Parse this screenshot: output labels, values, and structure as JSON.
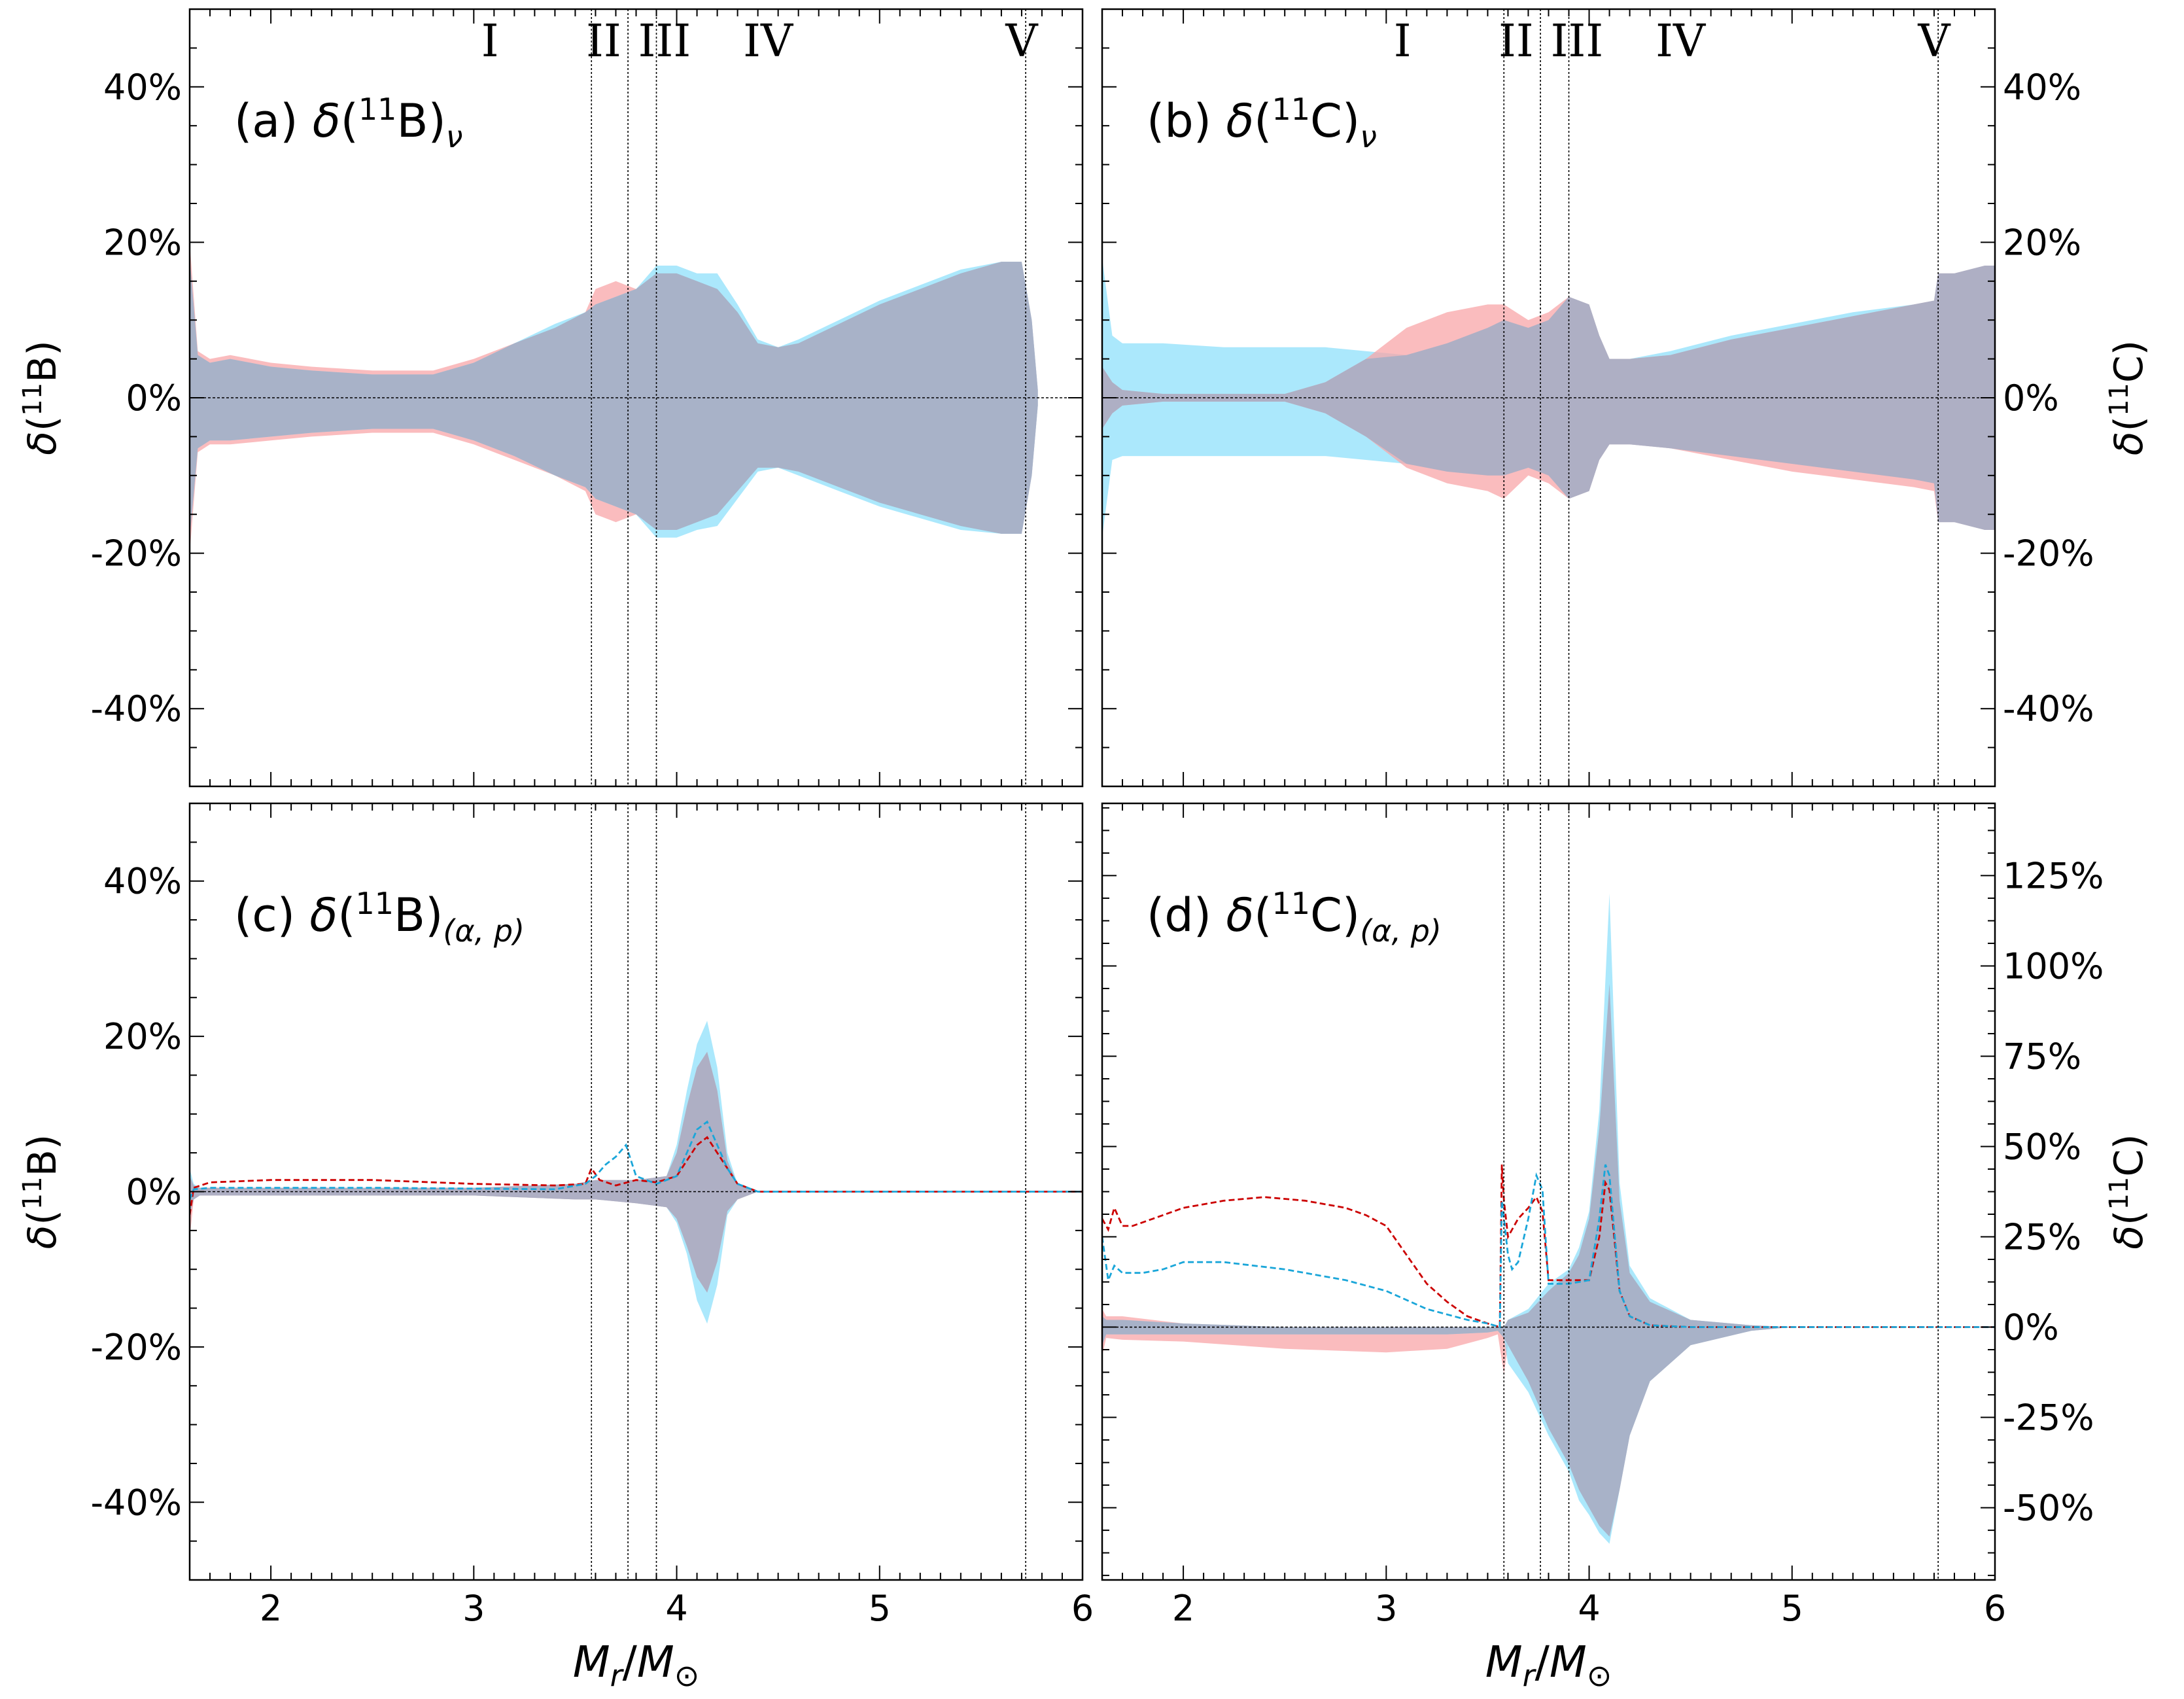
{
  "chart_data": [
    {
      "panel": "a",
      "type": "area",
      "label_prefix": "(a) ",
      "label_nuc": "11",
      "label_el": "B",
      "label_sub": "ν",
      "ylabel_el": "B",
      "ylabel_side": "left",
      "xlim": [
        1.6,
        6.0
      ],
      "ylim": [
        -50,
        50
      ],
      "yticks": [
        -40,
        -20,
        0,
        20,
        40
      ],
      "ytick_labels": [
        "-40%",
        "-20%",
        "0%",
        "20%",
        "40%"
      ],
      "series": [
        {
          "color": "#f8a6a8",
          "x": [
            1.6,
            1.64,
            1.7,
            1.8,
            2.0,
            2.2,
            2.5,
            2.8,
            3.0,
            3.2,
            3.4,
            3.55,
            3.6,
            3.7,
            3.8,
            3.9,
            4.0,
            4.1,
            4.2,
            4.3,
            4.4,
            4.5,
            4.6,
            4.8,
            5.0,
            5.2,
            5.4,
            5.6,
            5.7,
            5.75,
            5.78
          ],
          "upper": [
            20,
            6,
            5,
            5.5,
            4.5,
            4,
            3.5,
            3.5,
            5,
            7,
            9,
            11,
            14,
            15,
            14,
            16,
            16,
            15,
            14,
            11,
            7,
            6.5,
            7,
            9.5,
            12,
            14,
            16,
            17.5,
            17.5,
            10,
            1
          ],
          "lower": [
            -20,
            -7,
            -6,
            -6,
            -5.5,
            -5,
            -4.5,
            -4.5,
            -6,
            -8,
            -10,
            -12,
            -15,
            -16,
            -15,
            -17,
            -17,
            -16,
            -15,
            -12,
            -9,
            -9,
            -9.5,
            -11.5,
            -13.5,
            -15,
            -16.5,
            -17.5,
            -17.5,
            -10,
            -1
          ]
        },
        {
          "color": "#8fe0fb",
          "x": [
            1.6,
            1.64,
            1.7,
            1.8,
            2.0,
            2.2,
            2.5,
            2.8,
            3.0,
            3.2,
            3.4,
            3.55,
            3.6,
            3.7,
            3.8,
            3.9,
            4.0,
            4.1,
            4.2,
            4.3,
            4.4,
            4.5,
            4.6,
            4.8,
            5.0,
            5.2,
            5.4,
            5.6,
            5.7,
            5.75,
            5.78
          ],
          "upper": [
            18,
            5.5,
            4.5,
            5,
            4,
            3.5,
            3,
            3,
            4.5,
            7,
            9.5,
            11,
            12,
            13,
            14,
            17,
            17,
            16,
            16,
            12,
            7.5,
            6.5,
            7.5,
            10,
            12.5,
            14.5,
            16.5,
            17.5,
            17.5,
            10,
            1
          ],
          "lower": [
            -18,
            -6.5,
            -5.5,
            -5.5,
            -5,
            -4.5,
            -4,
            -4,
            -5.5,
            -7.5,
            -10,
            -11.5,
            -13,
            -14,
            -15,
            -18,
            -18,
            -17,
            -16.5,
            -13,
            -9.5,
            -9,
            -10,
            -12,
            -14,
            -15.5,
            -17,
            -17.5,
            -17.5,
            -10,
            -1
          ]
        }
      ],
      "dashed_lines": []
    },
    {
      "panel": "b",
      "type": "area",
      "label_prefix": "(b) ",
      "label_nuc": "11",
      "label_el": "C",
      "label_sub": "ν",
      "ylabel_el": "C",
      "ylabel_side": "right",
      "xlim": [
        1.6,
        6.0
      ],
      "ylim": [
        -50,
        50
      ],
      "yticks": [
        -40,
        -20,
        0,
        20,
        40
      ],
      "ytick_labels": [
        "-40%",
        "-20%",
        "0%",
        "20%",
        "40%"
      ],
      "series": [
        {
          "color": "#8fe0fb",
          "x": [
            1.6,
            1.65,
            1.7,
            1.9,
            2.2,
            2.5,
            2.7,
            2.9,
            3.1,
            3.3,
            3.5,
            3.58,
            3.7,
            3.8,
            3.9,
            4.0,
            4.05,
            4.1,
            4.2,
            4.4,
            4.7,
            5.0,
            5.3,
            5.6,
            5.7,
            5.72,
            5.8,
            5.95,
            6.0
          ],
          "upper": [
            18,
            8,
            7,
            7,
            6.5,
            6.5,
            6.5,
            6,
            5.5,
            7,
            9,
            10,
            9,
            10,
            13,
            12,
            8,
            5,
            5,
            6,
            8,
            9.5,
            11,
            12,
            12.5,
            16,
            16,
            17,
            17
          ],
          "lower": [
            -18,
            -8,
            -7.5,
            -7.5,
            -7.5,
            -7.5,
            -7.5,
            -8,
            -8.5,
            -9.5,
            -10,
            -10,
            -9,
            -10,
            -13,
            -12,
            -8,
            -6,
            -6,
            -6.5,
            -7.5,
            -8.5,
            -9.5,
            -10.5,
            -11,
            -16,
            -16,
            -17,
            -17
          ]
        },
        {
          "color": "#f8a6a8",
          "x": [
            1.6,
            1.65,
            1.7,
            1.9,
            2.2,
            2.5,
            2.7,
            2.9,
            3.1,
            3.3,
            3.5,
            3.58,
            3.7,
            3.8,
            3.9,
            4.0,
            4.05,
            4.1,
            4.2,
            4.4,
            4.7,
            5.0,
            5.3,
            5.6,
            5.7,
            5.72,
            5.8,
            5.95,
            6.0
          ],
          "upper": [
            4,
            2,
            1,
            0.5,
            0.5,
            0.5,
            2,
            5,
            9,
            11,
            12,
            12,
            10,
            11,
            13,
            12,
            8,
            5,
            5,
            5.5,
            7.5,
            9,
            10.5,
            12,
            12.5,
            16,
            16,
            17,
            17
          ],
          "lower": [
            -4,
            -2,
            -1,
            -0.5,
            -0.5,
            -0.5,
            -2,
            -5,
            -9,
            -11,
            -12,
            -13,
            -10,
            -11,
            -13,
            -12,
            -8,
            -6,
            -6,
            -6.5,
            -8,
            -9.5,
            -10.5,
            -11.5,
            -12,
            -16,
            -16,
            -17,
            -17
          ]
        }
      ],
      "dashed_lines": []
    },
    {
      "panel": "c",
      "type": "area",
      "label_prefix": "(c) ",
      "label_nuc": "11",
      "label_el": "B",
      "label_sub": "(α, p)",
      "ylabel_el": "B",
      "ylabel_side": "left",
      "xlim": [
        1.6,
        6.0
      ],
      "ylim": [
        -50,
        50
      ],
      "yticks": [
        -40,
        -20,
        0,
        20,
        40
      ],
      "ytick_labels": [
        "-40%",
        "-20%",
        "0%",
        "20%",
        "40%"
      ],
      "series": [
        {
          "color": "#8fe0fb",
          "x": [
            1.6,
            1.62,
            1.65,
            2.0,
            2.5,
            3.0,
            3.5,
            3.6,
            3.8,
            3.95,
            4.0,
            4.05,
            4.1,
            4.15,
            4.2,
            4.25,
            4.3,
            4.4,
            5.0,
            6.0
          ],
          "upper": [
            3,
            1,
            0.5,
            0.5,
            0.5,
            0.5,
            1,
            1.5,
            1.5,
            2,
            6,
            13,
            19,
            22,
            16,
            5,
            1,
            0,
            0,
            0
          ],
          "lower": [
            -3,
            -1,
            -0.5,
            -0.5,
            -0.5,
            -0.5,
            -1,
            -1,
            -1.5,
            -2,
            -4,
            -8,
            -14,
            -17,
            -12,
            -3,
            -1,
            0,
            0,
            0
          ]
        },
        {
          "color": "#f8a6a8",
          "x": [
            1.6,
            1.62,
            1.65,
            2.0,
            2.5,
            3.0,
            3.5,
            3.6,
            3.8,
            3.95,
            4.0,
            4.05,
            4.1,
            4.15,
            4.2,
            4.25,
            4.3,
            4.4,
            5.0,
            6.0
          ],
          "upper": [
            2,
            0.8,
            0.5,
            0.5,
            0.5,
            0.5,
            1,
            1.5,
            1.5,
            2,
            5,
            11,
            16,
            18,
            13,
            4,
            1,
            0,
            0,
            0
          ],
          "lower": [
            -6,
            -1,
            -0.5,
            -0.5,
            -0.5,
            -0.5,
            -1,
            -1,
            -1.5,
            -2,
            -3.5,
            -7,
            -11,
            -13,
            -9,
            -2.5,
            -1,
            0,
            0,
            0
          ]
        }
      ],
      "dashed_lines": [
        {
          "color": "#cc0000",
          "x": [
            1.6,
            1.62,
            1.7,
            2.0,
            2.5,
            3.0,
            3.4,
            3.55,
            3.58,
            3.62,
            3.7,
            3.8,
            3.9,
            4.0,
            4.05,
            4.1,
            4.15,
            4.2,
            4.25,
            4.3,
            4.4,
            5.0,
            6.0
          ],
          "y": [
            -3,
            0.5,
            1.2,
            1.5,
            1.5,
            1,
            0.8,
            1,
            3,
            1.5,
            0.8,
            1.5,
            1.2,
            2,
            4,
            6,
            7,
            5,
            3,
            1,
            0,
            0,
            0
          ]
        },
        {
          "color": "#1aa6d9",
          "x": [
            1.6,
            1.62,
            1.7,
            2.0,
            2.5,
            3.0,
            3.4,
            3.55,
            3.6,
            3.65,
            3.7,
            3.75,
            3.8,
            3.9,
            4.0,
            4.05,
            4.1,
            4.15,
            4.2,
            4.25,
            4.3,
            4.4,
            5.0,
            6.0
          ],
          "y": [
            -1,
            0.3,
            0.5,
            0.5,
            0.5,
            0.4,
            0.3,
            1,
            2,
            3.5,
            4.5,
            6,
            2,
            1,
            2,
            5,
            8,
            9,
            6,
            3,
            1,
            0,
            0,
            0
          ]
        }
      ]
    },
    {
      "panel": "d",
      "type": "area",
      "label_prefix": "(d) ",
      "label_nuc": "11",
      "label_el": "C",
      "label_sub": "(α, p)",
      "ylabel_el": "C",
      "ylabel_side": "right",
      "xlim": [
        1.6,
        6.0
      ],
      "ylim": [
        -70,
        145
      ],
      "yticks": [
        -50,
        -25,
        0,
        25,
        50,
        75,
        100,
        125
      ],
      "ytick_labels": [
        "-50%",
        "-25%",
        "0%",
        "25%",
        "50%",
        "75%",
        "100%",
        "125%"
      ],
      "series": [
        {
          "color": "#f8a6a8",
          "x": [
            1.6,
            1.62,
            1.7,
            2.0,
            2.5,
            3.0,
            3.3,
            3.5,
            3.55,
            3.58,
            3.6,
            3.7,
            3.8,
            3.9,
            3.95,
            4.0,
            4.05,
            4.1,
            4.15,
            4.2,
            4.3,
            4.5,
            4.8,
            5.0,
            6.0
          ],
          "upper": [
            5,
            3,
            3,
            1,
            0,
            0,
            0,
            0,
            0,
            0,
            2,
            4,
            10,
            15,
            20,
            30,
            55,
            95,
            35,
            15,
            7,
            2,
            0.5,
            0,
            0
          ],
          "lower": [
            -8,
            -3,
            -3.5,
            -4,
            -6,
            -7,
            -6,
            -3,
            -2,
            -13,
            -5,
            -15,
            -28,
            -38,
            -45,
            -50,
            -55,
            -58,
            -45,
            -30,
            -15,
            -5,
            -1,
            0,
            0
          ]
        },
        {
          "color": "#8fe0fb",
          "x": [
            1.6,
            1.62,
            1.7,
            2.0,
            2.5,
            3.0,
            3.3,
            3.5,
            3.55,
            3.58,
            3.6,
            3.7,
            3.8,
            3.9,
            3.95,
            4.0,
            4.05,
            4.1,
            4.15,
            4.2,
            4.3,
            4.5,
            4.8,
            5.0,
            6.0
          ],
          "upper": [
            3,
            2,
            2,
            1,
            0,
            0,
            0,
            0,
            0,
            0,
            2,
            5,
            12,
            16,
            22,
            32,
            60,
            120,
            40,
            17,
            8,
            2,
            0.5,
            0,
            0
          ],
          "lower": [
            -5,
            -2,
            -2,
            -2,
            -2,
            -2,
            -2,
            -1.5,
            -1,
            -3,
            -10,
            -18,
            -30,
            -40,
            -48,
            -52,
            -57,
            -60,
            -45,
            -30,
            -15,
            -5,
            -1,
            0,
            0
          ]
        }
      ],
      "dashed_lines": [
        {
          "color": "#cc0000",
          "x": [
            1.6,
            1.63,
            1.66,
            1.7,
            1.75,
            1.85,
            2.0,
            2.2,
            2.4,
            2.6,
            2.8,
            2.9,
            3.0,
            3.1,
            3.2,
            3.3,
            3.4,
            3.5,
            3.56,
            3.57,
            3.58,
            3.6,
            3.62,
            3.65,
            3.7,
            3.74,
            3.77,
            3.8,
            3.9,
            4.0,
            4.05,
            4.08,
            4.1,
            4.15,
            4.2,
            4.3,
            4.5,
            5.0,
            6.0
          ],
          "y": [
            30,
            27,
            33,
            28,
            28,
            30,
            33,
            35,
            36,
            35,
            33,
            31,
            28,
            20,
            12,
            7,
            3,
            1,
            0,
            45,
            35,
            25,
            27,
            30,
            33,
            36,
            32,
            13,
            13,
            13,
            25,
            40,
            38,
            10,
            3,
            0.5,
            0,
            0,
            0
          ]
        },
        {
          "color": "#1aa6d9",
          "x": [
            1.6,
            1.63,
            1.66,
            1.7,
            1.8,
            1.9,
            2.0,
            2.2,
            2.5,
            2.8,
            3.0,
            3.2,
            3.4,
            3.5,
            3.56,
            3.57,
            3.58,
            3.6,
            3.62,
            3.65,
            3.7,
            3.74,
            3.77,
            3.8,
            3.9,
            4.0,
            4.05,
            4.08,
            4.1,
            4.15,
            4.2,
            4.3,
            4.5,
            5.0,
            6.0
          ],
          "y": [
            25,
            13,
            17,
            15,
            15,
            16,
            18,
            18,
            16,
            13,
            10,
            5,
            2,
            1,
            0,
            35,
            30,
            20,
            16,
            18,
            30,
            42,
            38,
            12,
            12,
            13,
            30,
            45,
            42,
            10,
            3,
            0.5,
            0,
            0,
            0
          ]
        }
      ]
    }
  ],
  "region_labels": [
    "I",
    "II",
    "III",
    "IV",
    "V"
  ],
  "region_label_x": [
    3.08,
    3.64,
    3.94,
    4.45,
    5.7
  ],
  "region_boundaries": [
    3.58,
    3.76,
    3.9,
    5.72
  ],
  "xticks": [
    2,
    3,
    4,
    5,
    6
  ],
  "xtick_labels": [
    "2",
    "3",
    "4",
    "5",
    "6"
  ],
  "xlabel": {
    "main": "M",
    "sub_r": "r",
    "slash": "/",
    "main2": "M",
    "sub_sun": "⊙"
  }
}
